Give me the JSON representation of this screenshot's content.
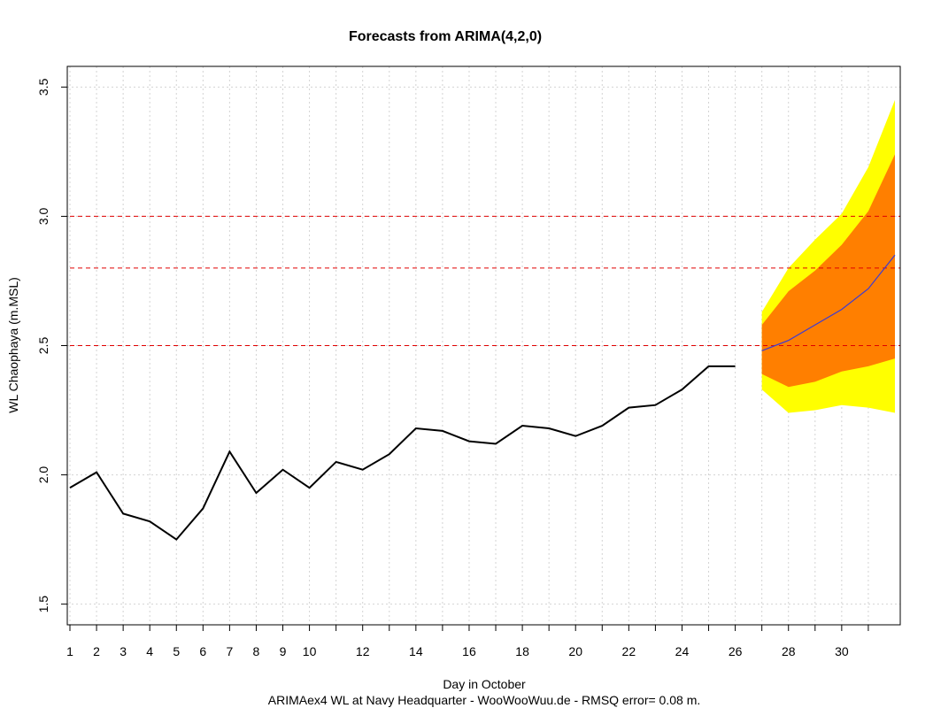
{
  "chart_data": {
    "type": "line",
    "title": "Forecasts from ARIMA(4,2,0)",
    "xlabel": "Day in October",
    "ylabel": "WL Chaophaya (m.MSL)",
    "caption": "ARIMAex4 WL at Navy Headquarter - WooWooWuu.de - RMSQ error= 0.08  m.",
    "xlim": [
      0.9,
      32.2
    ],
    "ylim": [
      1.42,
      3.58
    ],
    "x_ticks": [
      1,
      2,
      3,
      4,
      5,
      6,
      7,
      8,
      9,
      10,
      11,
      12,
      13,
      14,
      15,
      16,
      17,
      18,
      19,
      20,
      21,
      22,
      23,
      24,
      25,
      26,
      27,
      28,
      29,
      30,
      31
    ],
    "x_tick_labels": [
      "1",
      "2",
      "3",
      "4",
      "5",
      "6",
      "7",
      "8",
      "9",
      "10",
      "",
      "12",
      "",
      "14",
      "",
      "16",
      "",
      "18",
      "",
      "20",
      "",
      "22",
      "",
      "24",
      "",
      "26",
      "",
      "28",
      "",
      "30",
      ""
    ],
    "y_ticks": [
      1.5,
      2.0,
      2.5,
      3.0,
      3.5
    ],
    "y_tick_labels": [
      "1.5",
      "2.0",
      "2.5",
      "3.0",
      "3.5"
    ],
    "grid": true,
    "reference_lines": [
      2.5,
      2.8,
      3.0
    ],
    "observed": {
      "x": [
        1,
        2,
        3,
        4,
        5,
        6,
        7,
        8,
        9,
        10,
        11,
        12,
        13,
        14,
        15,
        16,
        17,
        18,
        19,
        20,
        21,
        22,
        23,
        24,
        25,
        26
      ],
      "y": [
        1.95,
        2.01,
        1.85,
        1.82,
        1.75,
        1.87,
        2.09,
        1.93,
        2.02,
        1.95,
        2.05,
        2.02,
        2.08,
        2.18,
        2.17,
        2.13,
        2.12,
        2.19,
        2.18,
        2.15,
        2.19,
        2.26,
        2.27,
        2.33,
        2.42,
        2.42
      ]
    },
    "forecast": {
      "x": [
        27,
        28,
        29,
        30,
        31,
        32
      ],
      "mean": [
        2.48,
        2.52,
        2.58,
        2.64,
        2.72,
        2.85
      ],
      "lo80": [
        2.39,
        2.34,
        2.36,
        2.4,
        2.42,
        2.45
      ],
      "hi80": [
        2.58,
        2.71,
        2.79,
        2.89,
        3.02,
        3.24
      ],
      "lo95": [
        2.33,
        2.24,
        2.25,
        2.27,
        2.26,
        2.24
      ],
      "hi95": [
        2.63,
        2.8,
        2.91,
        3.01,
        3.19,
        3.45
      ]
    },
    "colors": {
      "observed": "#000000",
      "mean": "#3b3bd6",
      "band80": "#ff7f00",
      "band95": "#ffff00",
      "reference": "#e00000",
      "grid": "#d3d3d3"
    }
  }
}
